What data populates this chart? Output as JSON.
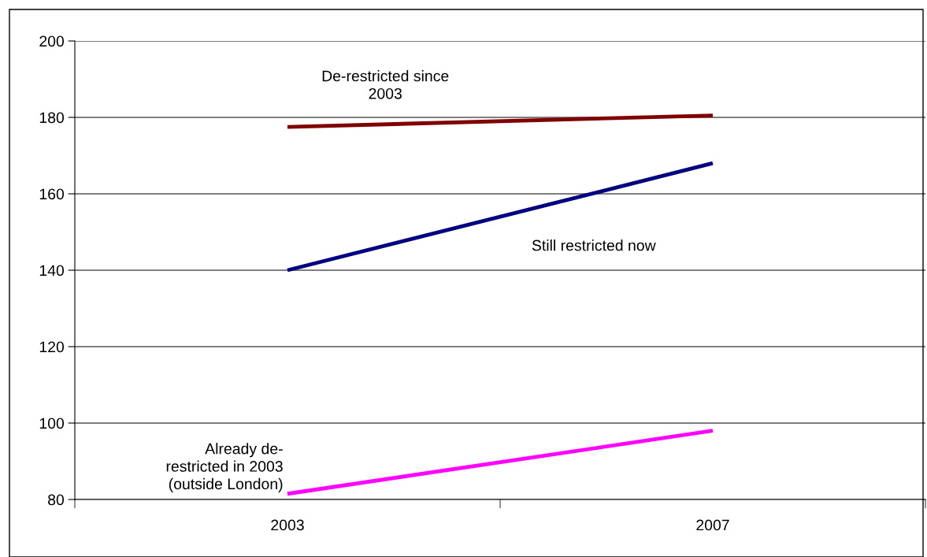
{
  "chart_data": {
    "type": "line",
    "categories": [
      "2003",
      "2007"
    ],
    "series": [
      {
        "name": "De-restricted since\n2003",
        "color": "#800000",
        "values": [
          177.5,
          180.5
        ]
      },
      {
        "name": "Still restricted now",
        "color": "#000080",
        "values": [
          140,
          168
        ]
      },
      {
        "name": "Already de-\nrestricted in 2003\n(outside London)",
        "color": "#ff00ff",
        "values": [
          81.5,
          98
        ]
      }
    ],
    "ylim": [
      80,
      200
    ],
    "yticks": [
      80,
      100,
      120,
      140,
      160,
      180,
      200
    ],
    "grid": "y",
    "legend": false,
    "marker": "none",
    "line_style": "solid"
  }
}
